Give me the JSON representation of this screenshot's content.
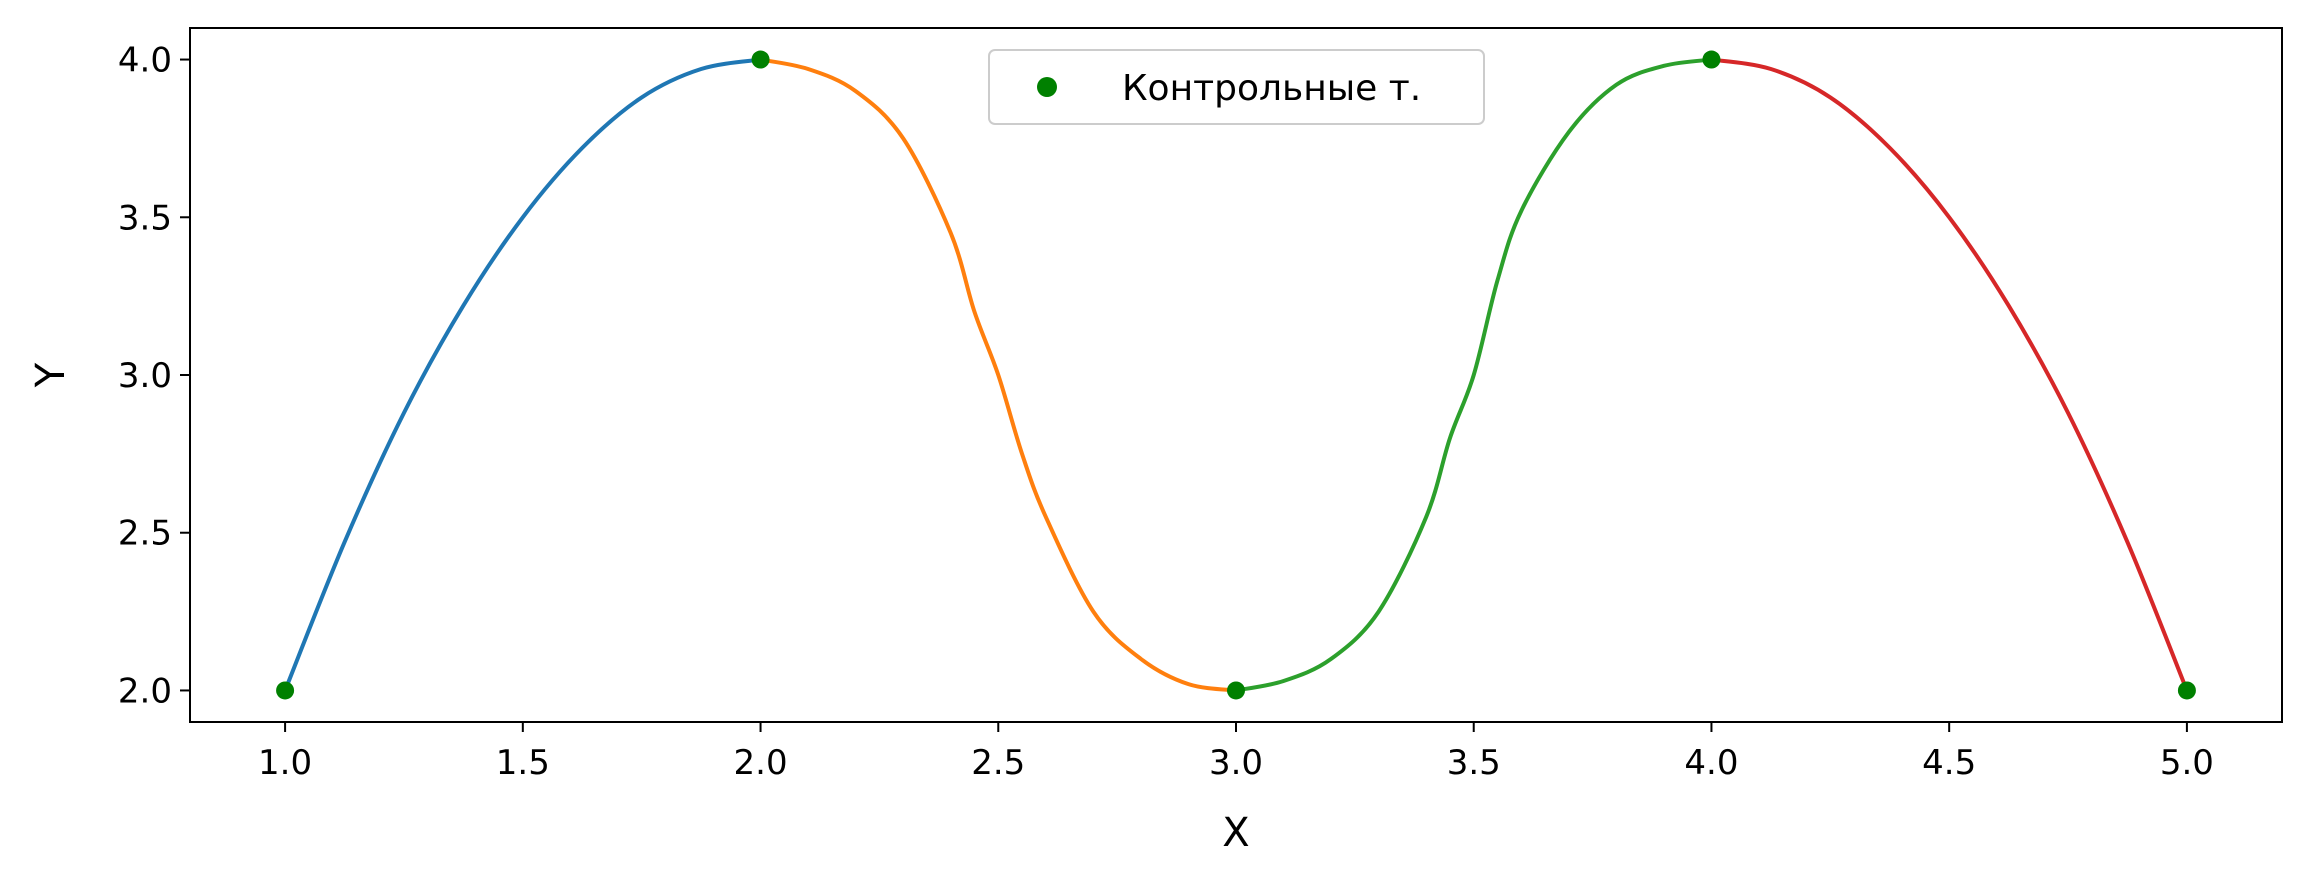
{
  "chart_data": {
    "type": "line",
    "title": "",
    "xlabel": "X",
    "ylabel": "Y",
    "xlim": [
      0.8,
      5.2
    ],
    "ylim": [
      1.9,
      4.1
    ],
    "xticks": [
      "1.0",
      "1.5",
      "2.0",
      "2.5",
      "3.0",
      "3.5",
      "4.0",
      "4.5",
      "5.0"
    ],
    "yticks": [
      "2.0",
      "2.5",
      "3.0",
      "3.5",
      "4.0"
    ],
    "grid": false,
    "legend_position": "top-center",
    "segments": [
      {
        "color": "#1f77b4",
        "x": [
          1.0,
          1.125,
          1.25,
          1.375,
          1.5,
          1.625,
          1.75,
          1.875,
          2.0
        ],
        "y": [
          2.0,
          2.47,
          2.88,
          3.22,
          3.5,
          3.72,
          3.88,
          3.97,
          4.0
        ]
      },
      {
        "color": "#ff7f0e",
        "x": [
          2.0,
          2.1,
          2.2,
          2.3,
          2.4,
          2.45,
          2.5,
          2.55,
          2.6,
          2.7,
          2.8,
          2.9,
          3.0
        ],
        "y": [
          4.0,
          3.97,
          3.9,
          3.75,
          3.45,
          3.2,
          3.0,
          2.75,
          2.55,
          2.25,
          2.1,
          2.02,
          2.0
        ]
      },
      {
        "color": "#2ca02c",
        "x": [
          3.0,
          3.1,
          3.2,
          3.3,
          3.4,
          3.45,
          3.5,
          3.55,
          3.6,
          3.7,
          3.8,
          3.9,
          4.0
        ],
        "y": [
          2.0,
          2.03,
          2.1,
          2.25,
          2.55,
          2.8,
          3.0,
          3.3,
          3.52,
          3.77,
          3.92,
          3.98,
          4.0
        ]
      },
      {
        "color": "#d62728",
        "x": [
          4.0,
          4.125,
          4.25,
          4.375,
          4.5,
          4.625,
          4.75,
          4.875,
          5.0
        ],
        "y": [
          4.0,
          3.97,
          3.88,
          3.72,
          3.5,
          3.22,
          2.88,
          2.47,
          2.0
        ]
      }
    ],
    "series": [
      {
        "name": "Контрольные т.",
        "type": "scatter",
        "color": "#008000",
        "x": [
          1.0,
          2.0,
          3.0,
          4.0,
          5.0
        ],
        "y": [
          2.0,
          4.0,
          2.0,
          4.0,
          2.0
        ]
      }
    ]
  }
}
